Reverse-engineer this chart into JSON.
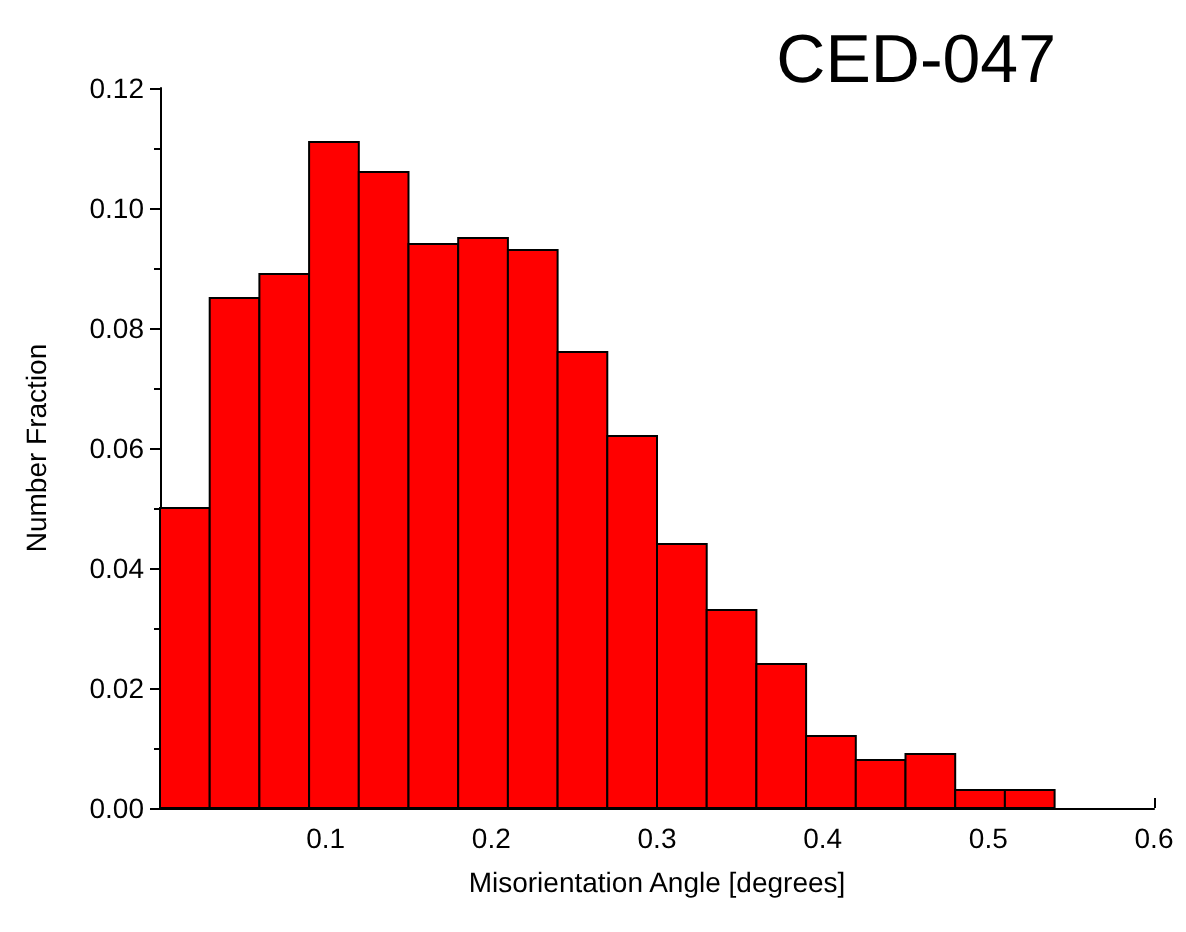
{
  "chart_data": {
    "type": "histogram",
    "title": "CED-047",
    "xlabel": "Misorientation Angle [degrees]",
    "ylabel": "Number Fraction",
    "bins": [
      0,
      0.03,
      0.06,
      0.09,
      0.12,
      0.15,
      0.18,
      0.21,
      0.24,
      0.27,
      0.3,
      0.33,
      0.36,
      0.39,
      0.42,
      0.45,
      0.48,
      0.51,
      0.54
    ],
    "values": [
      0.05,
      0.085,
      0.089,
      0.111,
      0.106,
      0.094,
      0.095,
      0.093,
      0.076,
      0.062,
      0.044,
      0.033,
      0.024,
      0.012,
      0.008,
      0.009,
      0.003,
      0.003
    ],
    "color": "#ff0000",
    "xlim": [
      0,
      0.6
    ],
    "xticks": [
      0.1,
      0.2,
      0.3,
      0.4,
      0.5,
      0.6
    ],
    "ylim": [
      0,
      0.12
    ],
    "yticks": [
      {
        "value": 0,
        "label": "0.00"
      },
      {
        "value": 0.02,
        "label": "0.02"
      },
      {
        "value": 0.04,
        "label": "0.04"
      },
      {
        "value": 0.06,
        "label": "0.06"
      },
      {
        "value": 0.08,
        "label": "0.08"
      },
      {
        "value": 0.1,
        "label": "0.10"
      },
      {
        "value": 0.12,
        "label": "0.12"
      }
    ],
    "grid": false
  }
}
